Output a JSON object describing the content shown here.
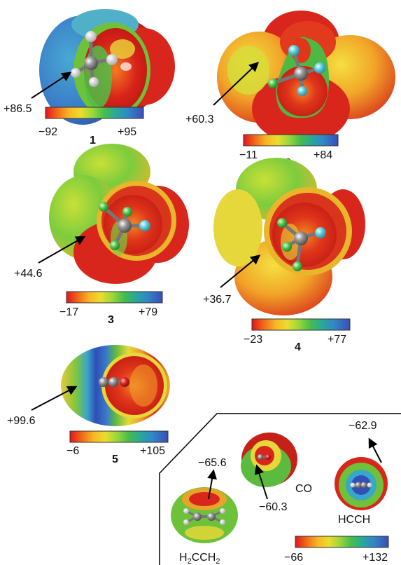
{
  "colors": {
    "scale": [
      "#e2151c",
      "#ea3d17",
      "#f1701a",
      "#f8a221",
      "#f8d42a",
      "#cfe334",
      "#8fd43c",
      "#4fc24a",
      "#2aa88a",
      "#2f8fbf",
      "#3573c4",
      "#3f4fb8"
    ],
    "surface_red": "#d9261c",
    "surface_orange": "#f09a28",
    "surface_yellow": "#e6d83a",
    "surface_green": "#5cbb3e",
    "surface_cyan": "#3aa6c8",
    "surface_blue": "#3050b8",
    "atom_carbon": "#8a8a8a",
    "atom_fluorine": "#58c8d8",
    "atom_hydrogen": "#e8e8e8",
    "atom_oxygen": "#d42020",
    "atom_chlorine": "#4ec04e"
  },
  "molecules": [
    {
      "id": "1",
      "callout": "+86.5",
      "min": "−92",
      "max": "+95"
    },
    {
      "id": "2",
      "callout": "+60.3",
      "min": "−11",
      "max": "+84"
    },
    {
      "id": "3",
      "callout": "+44.6",
      "min": "−17",
      "max": "+79"
    },
    {
      "id": "4",
      "callout": "+36.7",
      "min": "−23",
      "max": "+77"
    },
    {
      "id": "5",
      "callout": "+99.6",
      "min": "−6",
      "max": "+105"
    }
  ],
  "inset": {
    "ethylene_label_main": "H",
    "ethylene_label_sub1": "2",
    "ethylene_label_mid": "CCH",
    "ethylene_label_sub2": "2",
    "ethylene_value": "−65.6",
    "co_label": "CO",
    "co_value": "−60.3",
    "acetylene_label": "HCCH",
    "acetylene_value": "−62.9",
    "scale_min": "−66",
    "scale_max": "+132"
  }
}
